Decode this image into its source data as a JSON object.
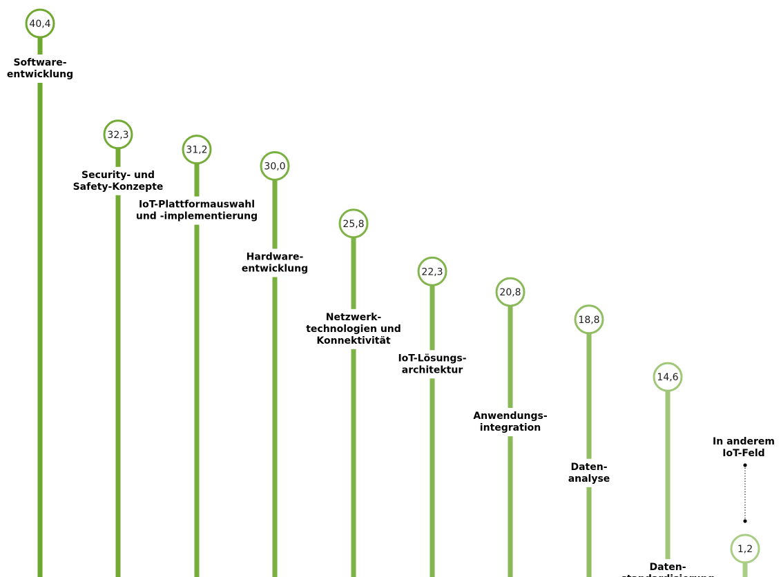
{
  "chart_data": {
    "type": "bar",
    "categories": [
      [
        "Software-",
        "entwicklung"
      ],
      [
        "Security- und",
        "Safety-Konzepte"
      ],
      [
        "IoT-Plattformauswahl",
        "und -implementierung"
      ],
      [
        "Hardware-",
        "entwicklung"
      ],
      [
        "Netzwerk-",
        "technologien und",
        "Konnektivität"
      ],
      [
        "IoT-Lösungs-",
        "architektur"
      ],
      [
        "Anwendungs-",
        "integration"
      ],
      [
        "Daten-",
        "analyse"
      ],
      [
        "Daten-",
        "standardisierung"
      ],
      [
        "In anderem",
        "IoT-Feld"
      ]
    ],
    "values": [
      40.4,
      32.3,
      31.2,
      30.0,
      25.8,
      22.3,
      20.8,
      18.8,
      14.6,
      1.2
    ],
    "value_labels": [
      "40,4",
      "32,3",
      "31,2",
      "30,0",
      "25,8",
      "22,3",
      "20,8",
      "18,8",
      "14,6",
      "1,2"
    ],
    "ylim": [
      0,
      40.4
    ],
    "grid": false,
    "title": "",
    "xlabel": "",
    "ylabel": "",
    "colors": [
      "#6fa82f",
      "#72aa34",
      "#76ad3a",
      "#79b040",
      "#7db246",
      "#82b54d",
      "#89b957",
      "#91be62",
      "#a0c778",
      "#a9cd84"
    ]
  }
}
